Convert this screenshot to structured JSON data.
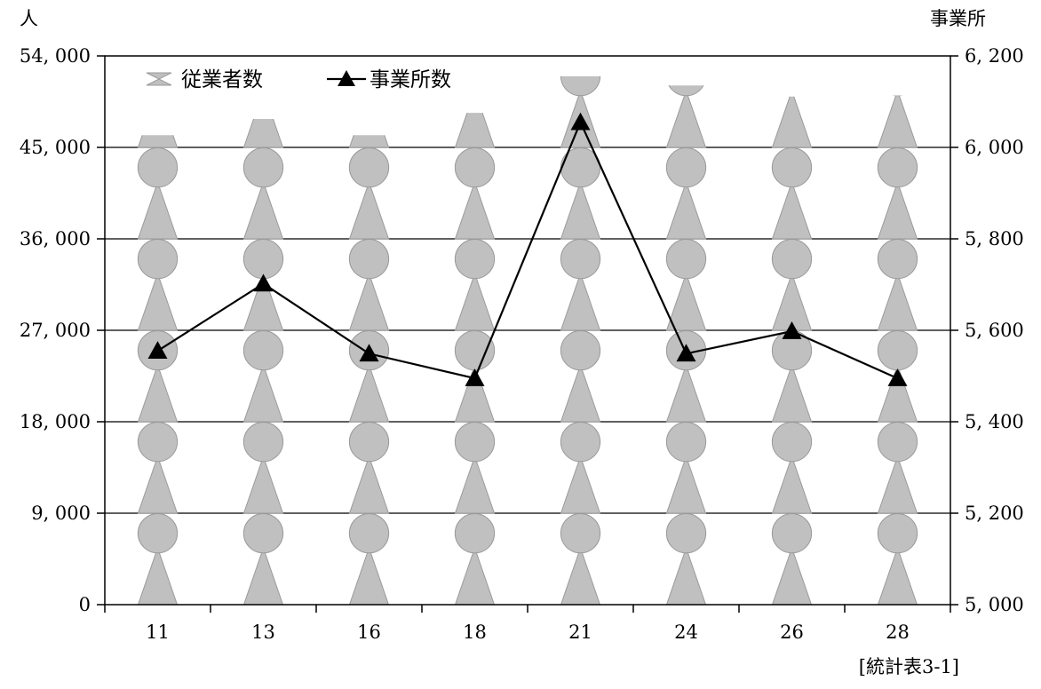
{
  "chart_data": {
    "type": "bar",
    "categories": [
      "11",
      "13",
      "16",
      "18",
      "21",
      "24",
      "26",
      "28"
    ],
    "series": [
      {
        "name": "従業者数",
        "kind": "pictogram-bar",
        "axis": "left",
        "color": "#c0c0c0",
        "values": [
          46200,
          47800,
          46200,
          48400,
          52000,
          51100,
          50000,
          50100
        ]
      },
      {
        "name": "事業所数",
        "kind": "line",
        "axis": "right",
        "marker": "triangle",
        "color": "#000000",
        "values": [
          5555,
          5702,
          5549,
          5495,
          6055,
          5549,
          5598,
          5495
        ]
      }
    ],
    "pictogram_unit": 9000,
    "y_left": {
      "unit": "人",
      "ylim": [
        0,
        54000
      ],
      "ticks": [
        0,
        9000,
        18000,
        27000,
        36000,
        45000,
        54000
      ],
      "tick_labels": [
        "0",
        "9, 000",
        "18, 000",
        "27, 000",
        "36, 000",
        "45, 000",
        "54, 000"
      ]
    },
    "y_right": {
      "unit": "事業所",
      "ylim": [
        5000,
        6200
      ],
      "ticks": [
        5000,
        5200,
        5400,
        5600,
        5800,
        6000,
        6200
      ],
      "tick_labels": [
        "5, 000",
        "5, 200",
        "5, 400",
        "5, 600",
        "5, 800",
        "6, 000",
        "6, 200"
      ]
    },
    "grid": true,
    "legend_position": "top-left",
    "source_note": "[統計表3-1]"
  }
}
